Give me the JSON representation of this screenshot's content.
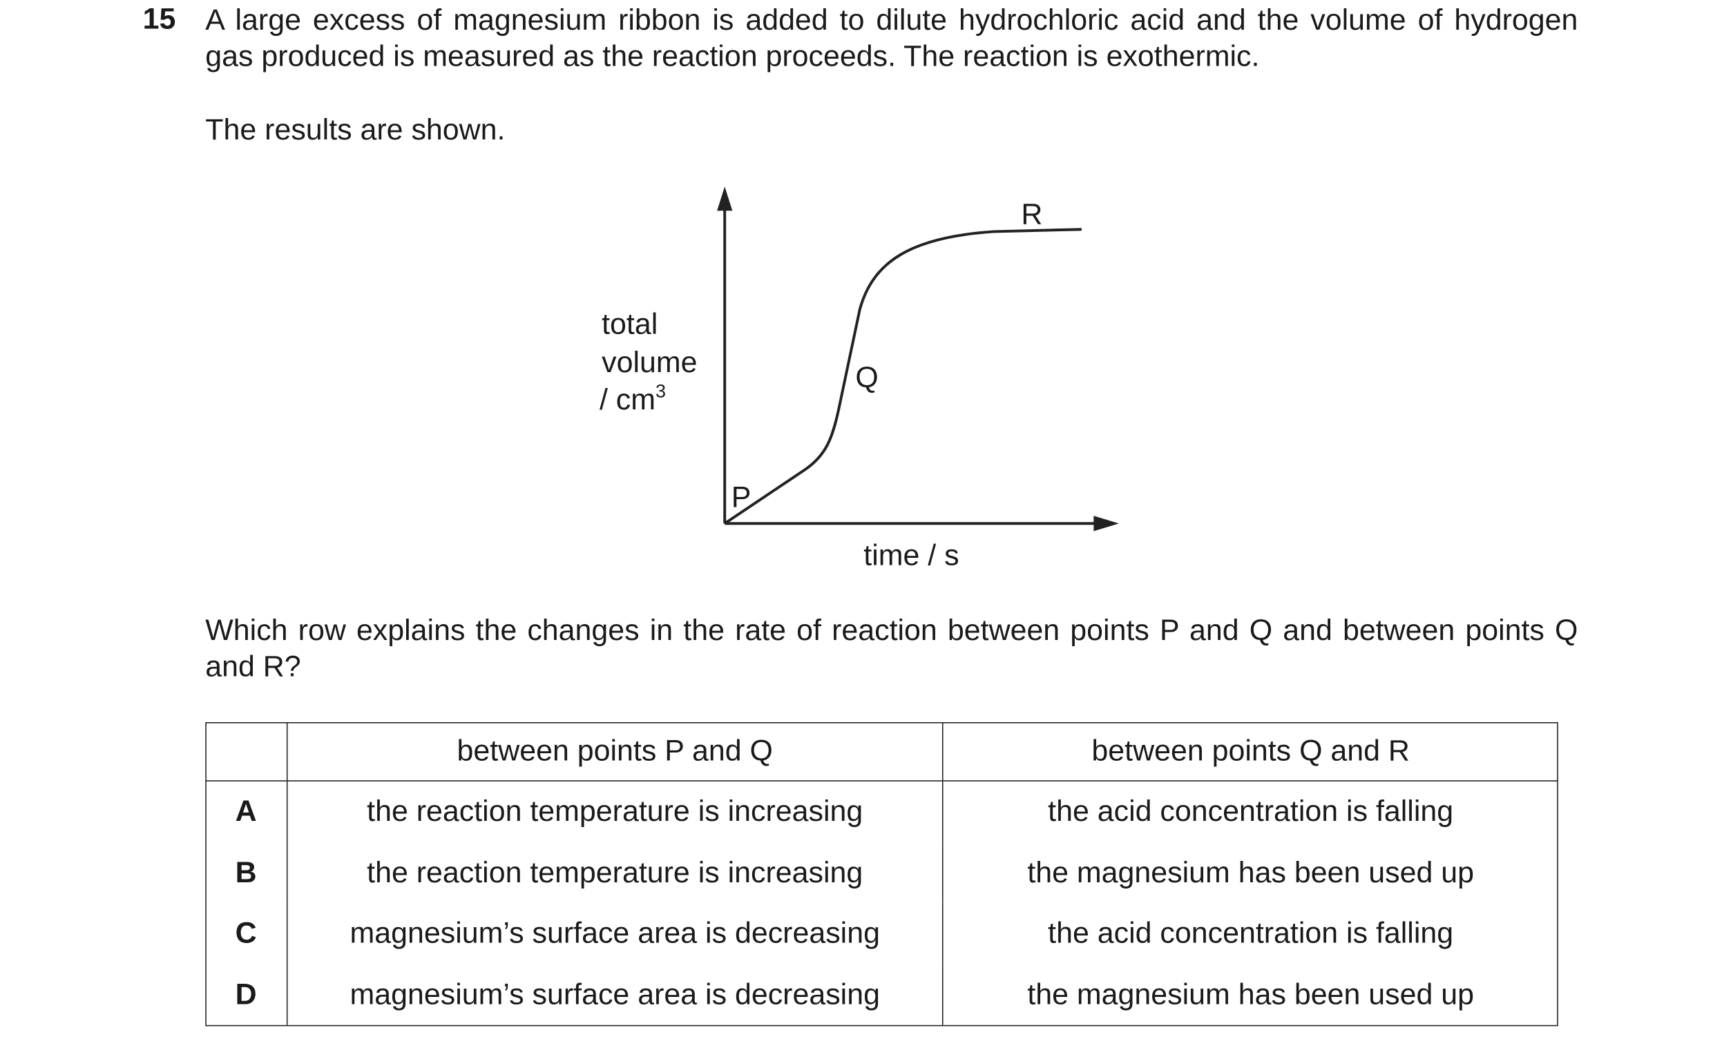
{
  "question": {
    "number": "15",
    "text": "A large excess of magnesium ribbon is added to dilute hydrochloric acid and the volume of hydrogen gas produced is measured as the reaction proceeds. The reaction is exothermic.",
    "intro": "The results are shown.",
    "prompt": "Which row explains the changes in the rate of reaction between points P and Q and between points Q and R?"
  },
  "graph": {
    "y_label": [
      "total",
      "volume"
    ],
    "y_unit": "/ cm",
    "y_unit_power": "3",
    "x_label": "time / s",
    "points": [
      "P",
      "Q",
      "R"
    ]
  },
  "table": {
    "header": [
      "between points P and Q",
      "between points Q and R"
    ],
    "rows": [
      [
        "A",
        "the reaction temperature is increasing",
        "the acid concentration is falling"
      ],
      [
        "B",
        "the reaction temperature is increasing",
        "the magnesium has been used up"
      ],
      [
        "C",
        "magnesium’s surface area is decreasing",
        "the acid concentration is falling"
      ],
      [
        "D",
        "magnesium’s surface area is decreasing",
        "the magnesium has been used up"
      ]
    ]
  }
}
